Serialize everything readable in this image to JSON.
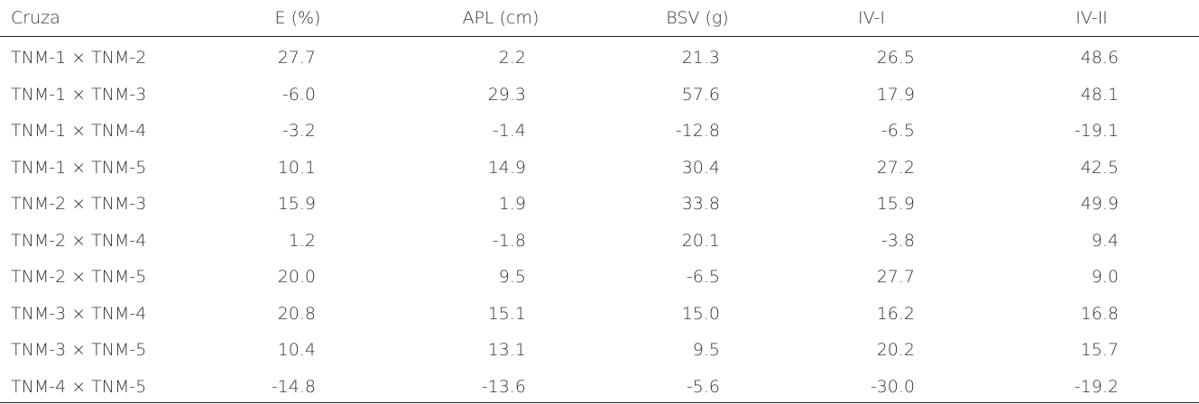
{
  "table": {
    "header": [
      "Cruza",
      "E (%)",
      "APL (cm)",
      "BSV (g)",
      "IV-I",
      "IV-II"
    ],
    "rows": [
      [
        "TNM-1 × TNM-2",
        "27.7",
        "2.2",
        "21.3",
        "26.5",
        "48.6"
      ],
      [
        "TNM-1 × TNM-3",
        "-6.0",
        "29.3",
        "57.6",
        "17.9",
        "48.1"
      ],
      [
        "TNM-1 × TNM-4",
        "-3.2",
        "-1.4",
        "-12.8",
        "-6.5",
        "-19.1"
      ],
      [
        "TNM-1 × TNM-5",
        "10.1",
        "14.9",
        "30.4",
        "27.2",
        "42.5"
      ],
      [
        "TNM-2 × TNM-3",
        "15.9",
        "1.9",
        "33.8",
        "15.9",
        "49.9"
      ],
      [
        "TNM-2 × TNM-4",
        "1.2",
        "-1.8",
        "20.1",
        "-3.8",
        "9.4"
      ],
      [
        "TNM-2 × TNM-5",
        "20.0",
        "9.5",
        "-6.5",
        "27.7",
        "9.0"
      ],
      [
        "TNM-3 × TNM-4",
        "20.8",
        "15.1",
        "15.0",
        "16.2",
        "16.8"
      ],
      [
        "TNM-3 × TNM-5",
        "10.4",
        "13.1",
        "9.5",
        "20.2",
        "15.7"
      ],
      [
        "TNM-4 × TNM-5",
        "-14.8",
        "-13.6",
        "-5.6",
        "-30.0",
        "-19.2"
      ]
    ]
  }
}
